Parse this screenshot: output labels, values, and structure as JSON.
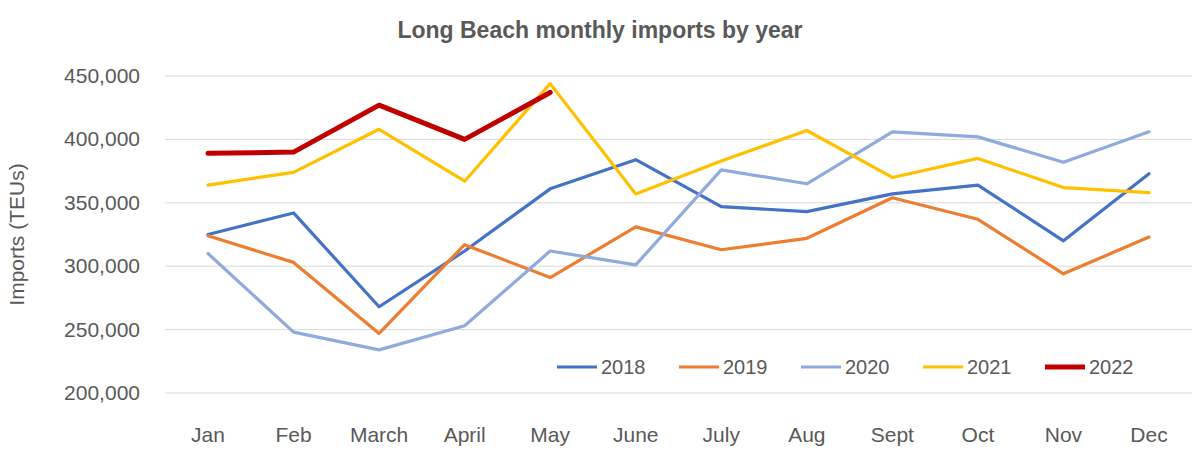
{
  "chart_data": {
    "type": "line",
    "title": "Long Beach monthly imports by year",
    "y_label": "Imports (TEUs)",
    "categories": [
      "Jan",
      "Feb",
      "March",
      "April",
      "May",
      "June",
      "July",
      "Aug",
      "Sept",
      "Oct",
      "Nov",
      "Dec"
    ],
    "series": [
      {
        "name": "2018",
        "color": "#4472c4",
        "values": [
          325000,
          342000,
          268000,
          312000,
          361000,
          384000,
          347000,
          343000,
          357000,
          364000,
          320000,
          373000
        ]
      },
      {
        "name": "2019",
        "color": "#ed7d31",
        "values": [
          324000,
          303000,
          247000,
          317000,
          291000,
          331000,
          313000,
          322000,
          354000,
          337000,
          294000,
          323000
        ]
      },
      {
        "name": "2020",
        "color": "#8faadc",
        "values": [
          310000,
          248000,
          234000,
          253000,
          312000,
          301000,
          376000,
          365000,
          406000,
          402000,
          382000,
          406000
        ]
      },
      {
        "name": "2021",
        "color": "#ffc000",
        "values": [
          364000,
          374000,
          408000,
          367000,
          444000,
          357000,
          383000,
          407000,
          370000,
          385000,
          362000,
          358000
        ]
      },
      {
        "name": "2022",
        "color": "#c00000",
        "values": [
          389000,
          390000,
          427000,
          400000,
          437000,
          null,
          null,
          null,
          null,
          null,
          null,
          null
        ]
      }
    ],
    "ylim": [
      200000,
      450000
    ],
    "yticks": [
      {
        "value": 200000,
        "label": "200,000"
      },
      {
        "value": 250000,
        "label": "250,000"
      },
      {
        "value": 300000,
        "label": "300,000"
      },
      {
        "value": 350000,
        "label": "350,000"
      },
      {
        "value": 400000,
        "label": "400,000"
      },
      {
        "value": 450000,
        "label": "450,000"
      }
    ],
    "grid": true,
    "legend": "lower right"
  }
}
